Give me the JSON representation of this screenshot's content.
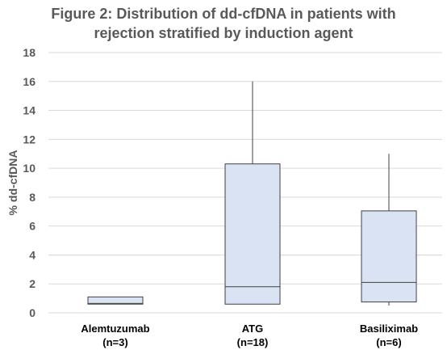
{
  "chart_data": {
    "type": "box",
    "title_lines": [
      "Figure 2: Distribution of dd-cfDNA in patients with",
      "rejection stratified by induction agent"
    ],
    "xlabel": "",
    "ylabel": "% dd-cfDNA",
    "ylim": [
      0,
      18
    ],
    "yticks": [
      0,
      2,
      4,
      6,
      8,
      10,
      12,
      14,
      16,
      18
    ],
    "grid": true,
    "categories": [
      {
        "name": "Alemtuzumab",
        "n_label": "(n=3)"
      },
      {
        "name": "ATG",
        "n_label": "(n=18)"
      },
      {
        "name": "Basiliximab",
        "n_label": "(n=6)"
      }
    ],
    "boxes": [
      {
        "category": "Alemtuzumab",
        "min": 0.6,
        "q1": 0.6,
        "median": 0.65,
        "q3": 1.1,
        "max": 1.1
      },
      {
        "category": "ATG",
        "min": 0.6,
        "q1": 0.6,
        "median": 1.8,
        "q3": 10.3,
        "max": 16.0
      },
      {
        "category": "Basiliximab",
        "min": 0.5,
        "q1": 0.75,
        "median": 2.1,
        "q3": 7.05,
        "max": 11.0
      }
    ],
    "colors": {
      "box_fill": "#dae3f3",
      "box_stroke": "#404040",
      "grid": "#d9d9d9",
      "text": "#595959"
    }
  }
}
